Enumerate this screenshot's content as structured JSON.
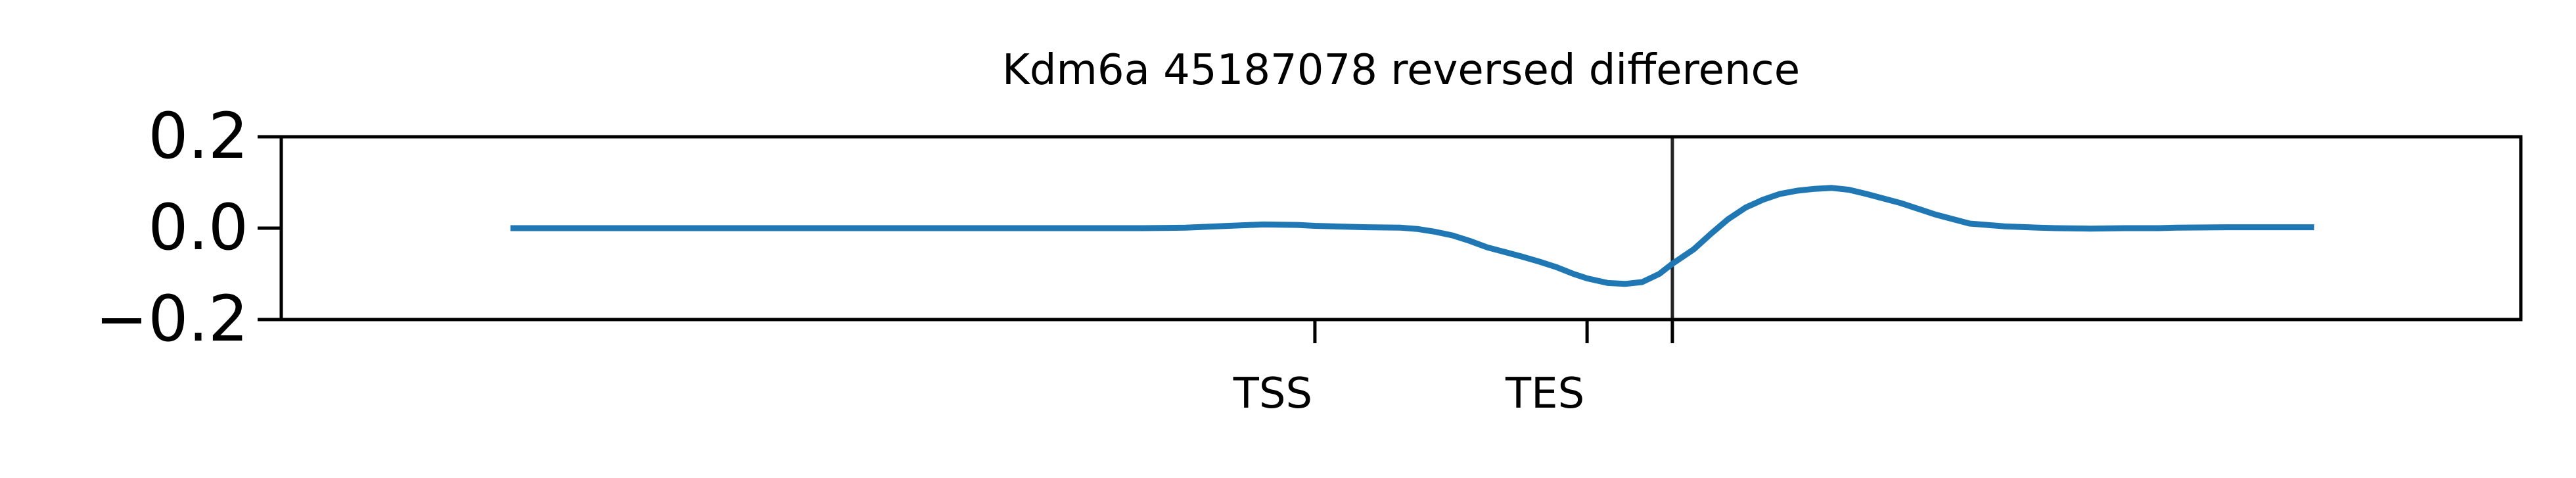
{
  "chart_data": {
    "type": "line",
    "title": "Kdm6a 45187078 reversed difference",
    "xlabel": "",
    "ylabel": "",
    "xlim": [
      -500,
      2100
    ],
    "ylim": [
      -0.2,
      0.2
    ],
    "yticks": [
      {
        "value": 0.2,
        "label": "0.2"
      },
      {
        "value": 0.0,
        "label": "0.0"
      },
      {
        "value": -0.2,
        "label": "−0.2"
      }
    ],
    "xticks": [
      {
        "value": 700,
        "label": "TSS"
      },
      {
        "value": 1016,
        "label": "TES"
      },
      {
        "value": 1115,
        "label": ""
      }
    ],
    "vlines": [
      1115
    ],
    "grid": false,
    "line_color": "#1f77b4",
    "series": [
      {
        "x": [
          -234,
          -100,
          0,
          100,
          200,
          300,
          400,
          450,
          500,
          550,
          600,
          640,
          680,
          700,
          760,
          800,
          820,
          840,
          860,
          880,
          900,
          920,
          940,
          960,
          980,
          1000,
          1016,
          1040,
          1060,
          1080,
          1100,
          1115,
          1140,
          1160,
          1180,
          1200,
          1220,
          1240,
          1260,
          1280,
          1300,
          1320,
          1340,
          1380,
          1420,
          1460,
          1500,
          1540,
          1560,
          1600,
          1640,
          1680,
          1700,
          1760,
          1800,
          1840,
          1860
        ],
        "y": [
          0.0,
          0.0,
          0.0,
          0.0,
          0.0,
          0.0,
          0.0,
          0.0,
          0.0,
          0.001,
          0.005,
          0.008,
          0.007,
          0.005,
          0.002,
          0.001,
          -0.002,
          -0.008,
          -0.016,
          -0.028,
          -0.042,
          -0.052,
          -0.062,
          -0.073,
          -0.085,
          -0.1,
          -0.11,
          -0.12,
          -0.122,
          -0.118,
          -0.1,
          -0.078,
          -0.046,
          -0.012,
          0.02,
          0.045,
          0.062,
          0.075,
          0.082,
          0.086,
          0.088,
          0.084,
          0.075,
          0.055,
          0.03,
          0.01,
          0.004,
          0.001,
          0.0,
          -0.001,
          0.0,
          0.0,
          0.001,
          0.002,
          0.002,
          0.002,
          0.002
        ]
      }
    ]
  }
}
